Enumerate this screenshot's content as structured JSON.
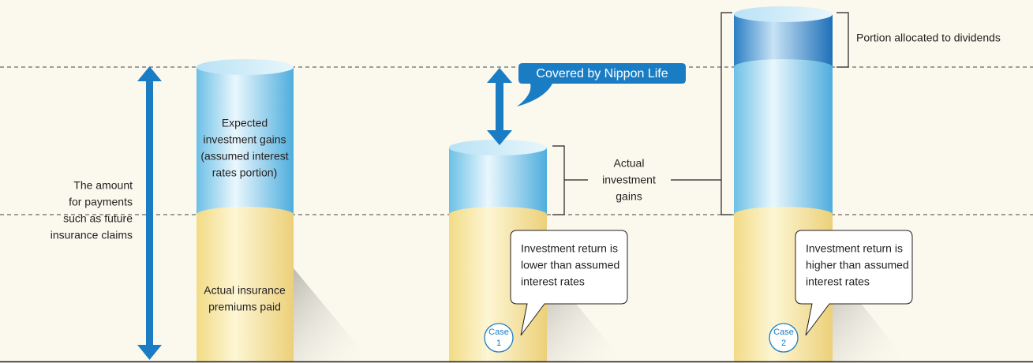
{
  "left_arrow_label": [
    "The amount",
    "for payments",
    "such as future",
    "insurance claims"
  ],
  "expected_gains": [
    "Expected",
    "investment gains",
    "(assumed interest",
    "rates portion)"
  ],
  "premiums": [
    "Actual insurance",
    "premiums paid"
  ],
  "covered": "Covered by Nippon Life",
  "actual_gains": [
    "Actual",
    "investment",
    "gains"
  ],
  "dividends": "Portion allocated to dividends",
  "case1": {
    "text": [
      "Investment return is",
      "lower than assumed",
      "interest rates"
    ],
    "badge": [
      "Case",
      "1"
    ]
  },
  "case2": {
    "text": [
      "Investment return is",
      "higher than assumed",
      "interest rates"
    ],
    "badge": [
      "Case",
      "2"
    ]
  }
}
